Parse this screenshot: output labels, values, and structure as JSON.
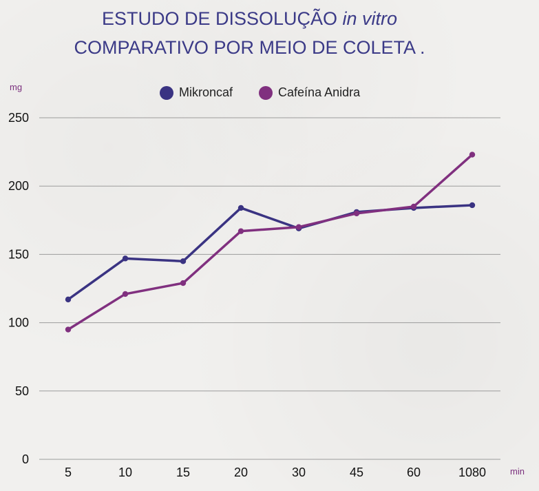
{
  "title": {
    "line1_main": "ESTUDO DE DISSOLUÇÃO",
    "line1_italic": "in vitro",
    "line2": "COMPARATIVO POR MEIO DE COLETA ."
  },
  "colors": {
    "mikroncaf": "#3a3382",
    "cafeina": "#80307f",
    "title": "#3b3a87",
    "grid": "#9b9b9b"
  },
  "chart_data": {
    "type": "line",
    "title": "ESTUDO DE DISSOLUÇÃO in vitro COMPARATIVO POR MEIO DE COLETA .",
    "y_unit": "mg",
    "x_unit": "min",
    "categories": [
      "5",
      "10",
      "15",
      "20",
      "30",
      "45",
      "60",
      "1080"
    ],
    "yticks": [
      "0",
      "50",
      "100",
      "150",
      "200",
      "250"
    ],
    "ylim": [
      0,
      250
    ],
    "grid": true,
    "legend_position": "top-center",
    "series": [
      {
        "name": "Mikroncaf",
        "values": [
          117,
          147,
          145,
          184,
          169,
          181,
          184,
          186
        ]
      },
      {
        "name": "Cafeína Anidra",
        "values": [
          95,
          121,
          129,
          167,
          170,
          180,
          185,
          223
        ]
      }
    ]
  }
}
